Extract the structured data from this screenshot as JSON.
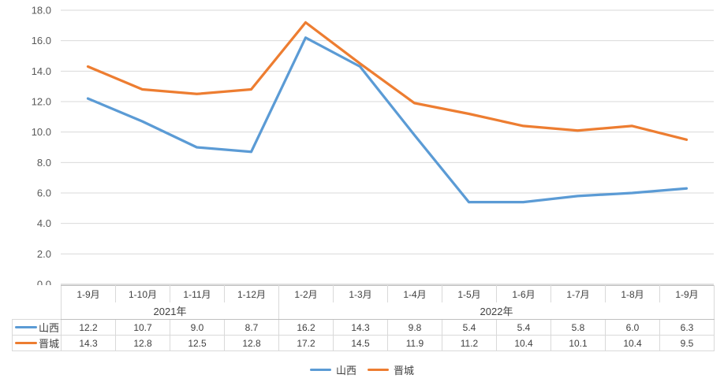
{
  "chart_data": {
    "type": "line",
    "categories": [
      "1-9月",
      "1-10月",
      "1-11月",
      "1-12月",
      "1-2月",
      "1-3月",
      "1-4月",
      "1-5月",
      "1-6月",
      "1-7月",
      "1-8月",
      "1-9月"
    ],
    "year_groups": [
      {
        "label": "2021年",
        "span": 4
      },
      {
        "label": "2022年",
        "span": 8
      }
    ],
    "series": [
      {
        "name": "山西",
        "color": "#5B9BD5",
        "values": [
          12.2,
          10.7,
          9.0,
          8.7,
          16.2,
          14.3,
          9.8,
          5.4,
          5.4,
          5.8,
          6.0,
          6.3
        ]
      },
      {
        "name": "晋城",
        "color": "#ED7D31",
        "values": [
          14.3,
          12.8,
          12.5,
          12.8,
          17.2,
          14.5,
          11.9,
          11.2,
          10.4,
          10.1,
          10.4,
          9.5
        ]
      }
    ],
    "title": "",
    "xlabel": "",
    "ylabel": "",
    "ylim": [
      0,
      18
    ],
    "ytick_step": 2,
    "value_decimals": 1,
    "grid": true,
    "legend_position": "bottom",
    "data_table_shown": true
  },
  "colors": {
    "background": "#FFFFFF",
    "gridline": "#D9D9D9",
    "axis_line": "#BFBFBF",
    "axis_text": "#595959",
    "table_text": "#404040",
    "table_border": "#D9D9D9",
    "table_border_strong": "#BFBFBF"
  }
}
